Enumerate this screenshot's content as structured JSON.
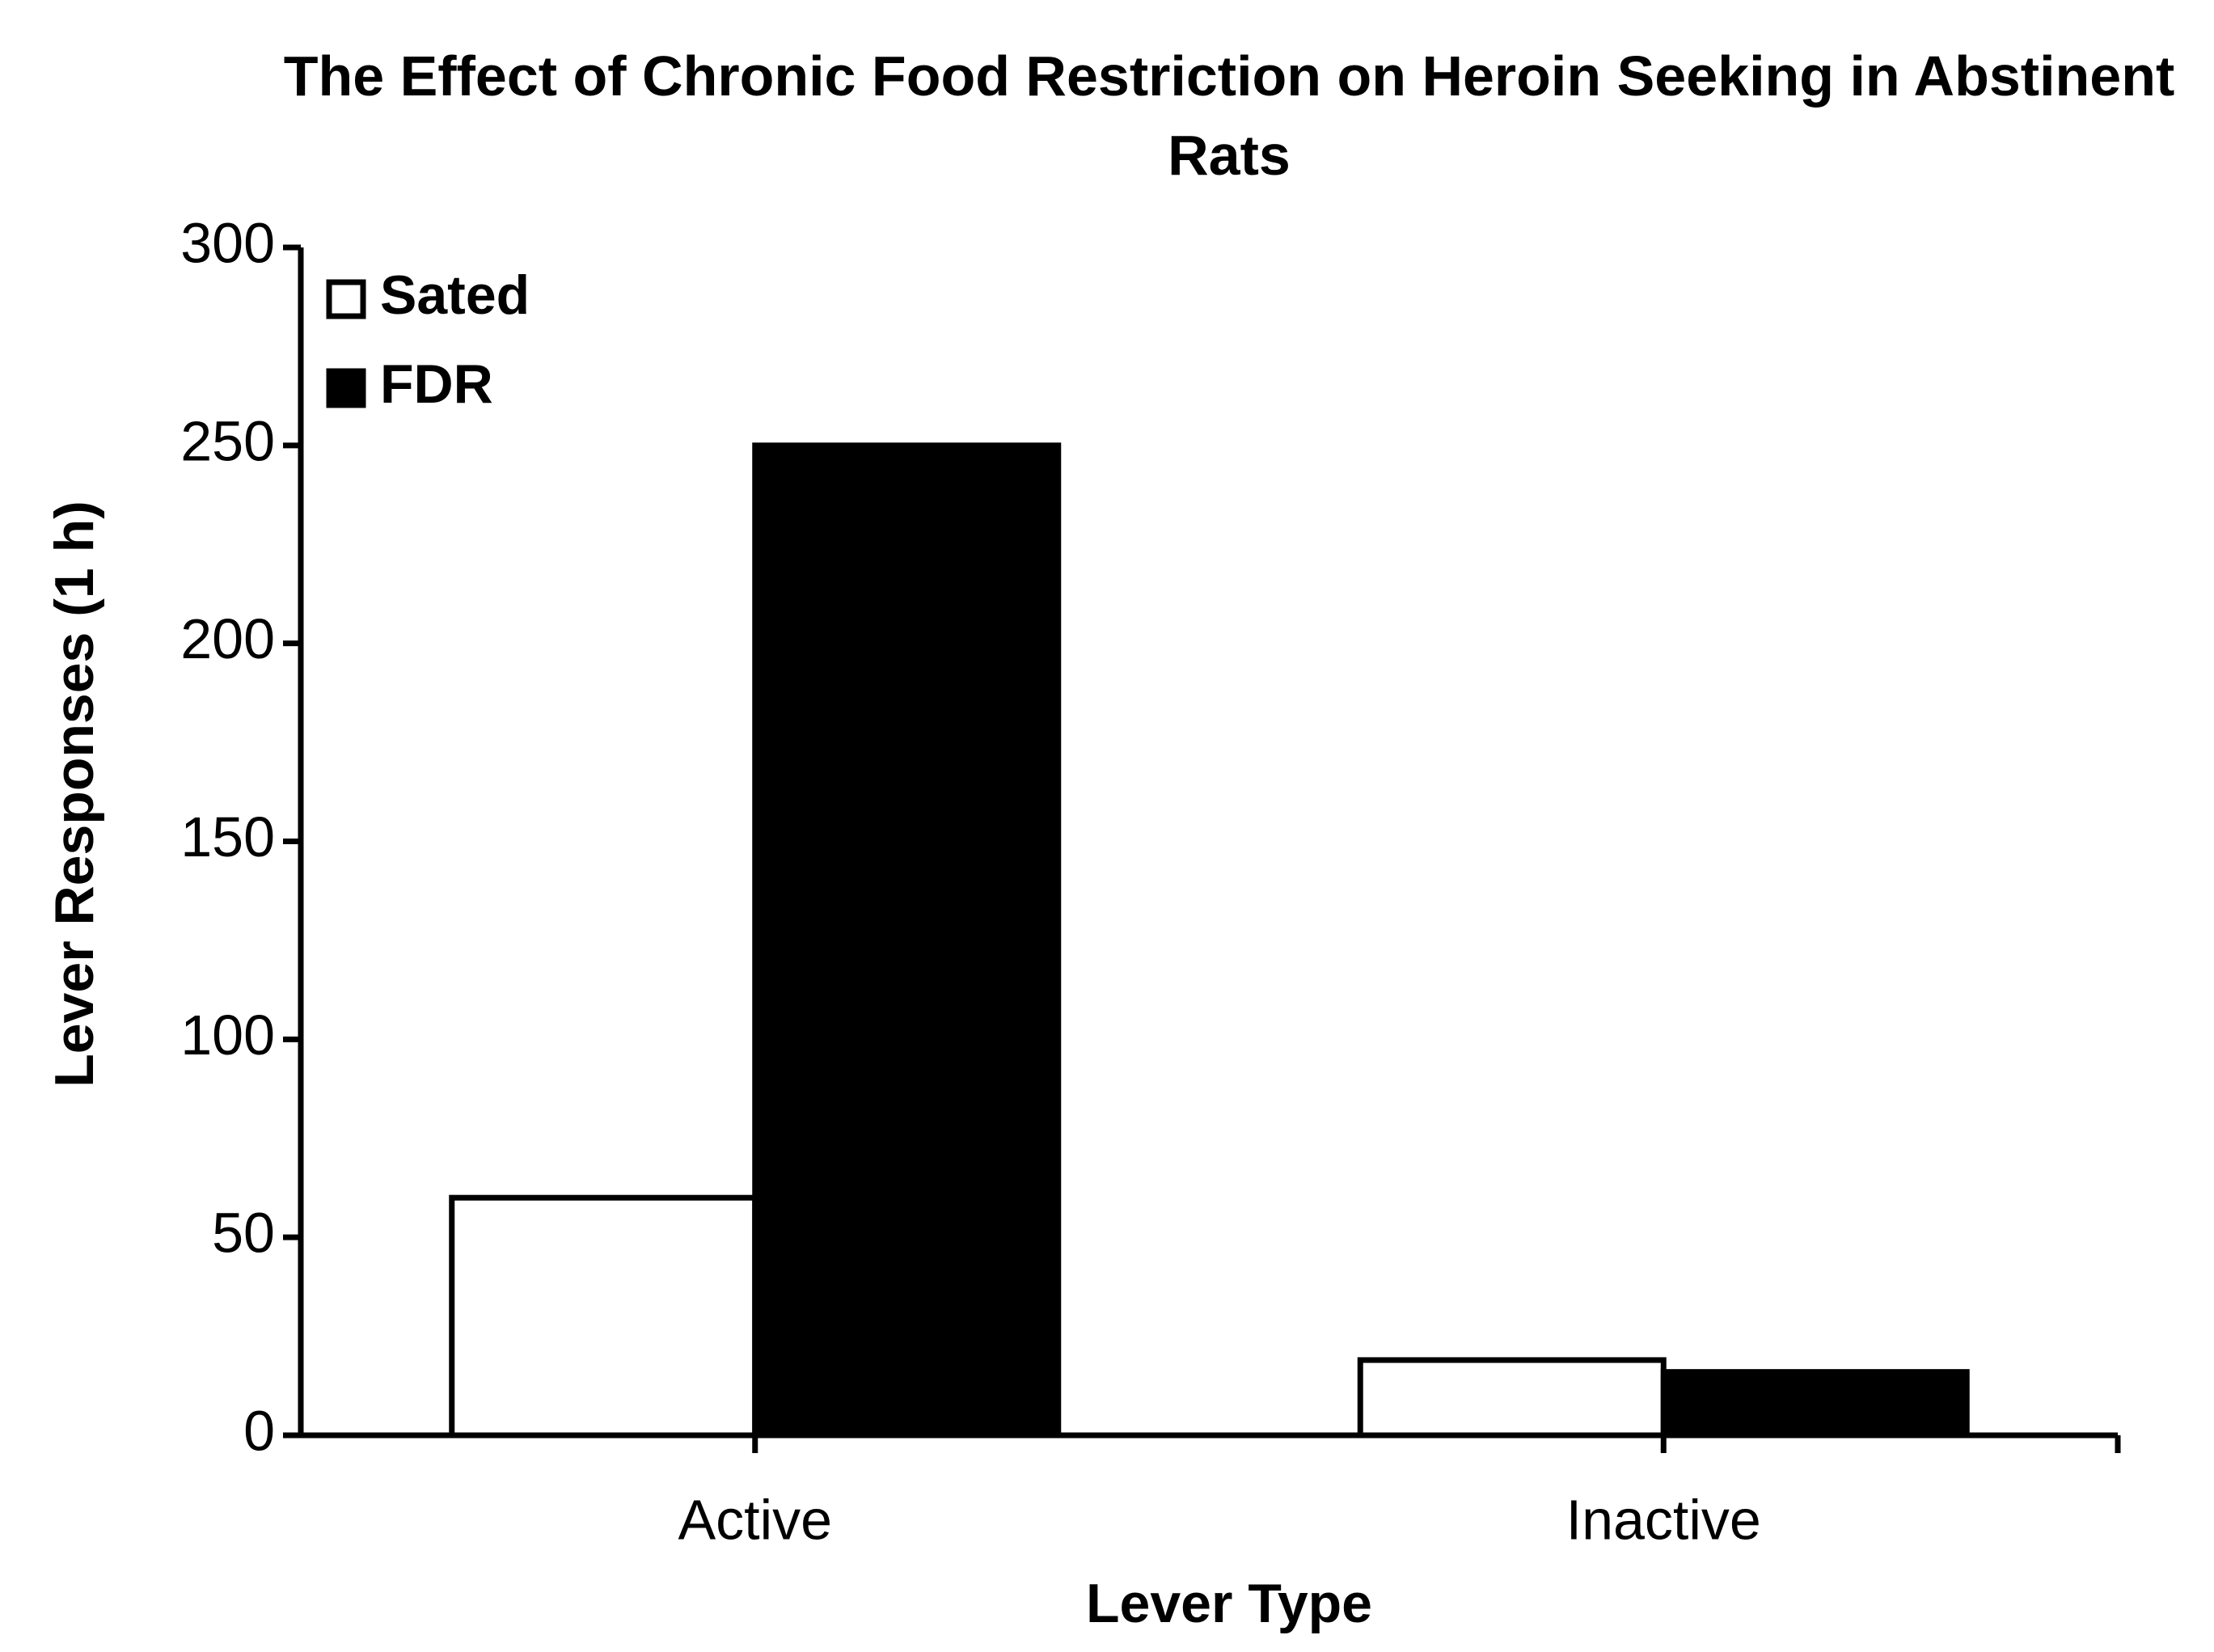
{
  "chart_data": {
    "type": "bar",
    "title": "The Effect of Chronic Food Restriction on Heroin Seeking in Abstinent Rats",
    "x_label": "Lever Type",
    "y_label": "Lever Responses (1 h)",
    "categories": [
      "Active",
      "Inactive"
    ],
    "series": [
      {
        "name": "Sated",
        "color": "#ffffff",
        "values": [
          60,
          19
        ]
      },
      {
        "name": "FDR",
        "color": "#000000",
        "values": [
          250,
          16
        ]
      }
    ],
    "ylim": [
      0,
      300
    ],
    "yticks": [
      0,
      50,
      100,
      150,
      200,
      250,
      300
    ],
    "grid": false,
    "legend": "top-left"
  }
}
